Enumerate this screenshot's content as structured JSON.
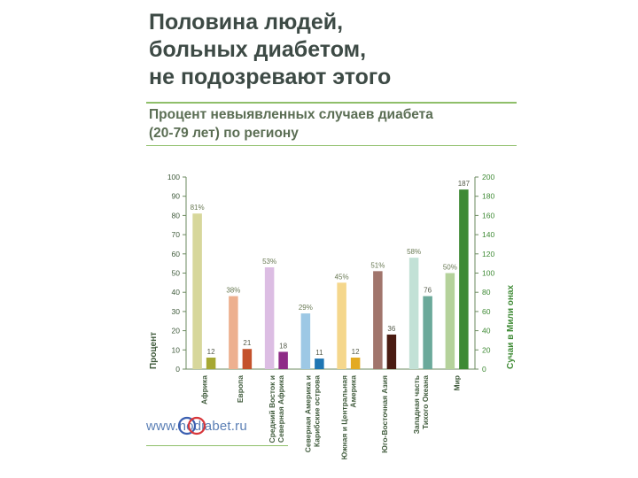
{
  "title": "Половина людей,\nбольных диабетом,\nне подозревают этого",
  "subtitle": "Процент невыявленных случаев диабета\n(20-79 лет) по региону",
  "website": "www.nodiabet.ru",
  "logo_text": "no",
  "colors": {
    "title": "#3d4a45",
    "rule": "#8fbf6a",
    "axis_text": "#3f5a3b",
    "right_axis_text": "#3e8a34"
  },
  "chart_data": {
    "type": "bar",
    "categories": [
      "Африка",
      "Европа",
      "Средний Восток и Северная Африка",
      "Северная Америка и Карибские острова",
      "Южная и Центральная Америка",
      "Юго-Восточная Азия",
      "Западная часть Тихого Океана",
      "Мир"
    ],
    "category_lines": [
      [
        "Африка"
      ],
      [
        "Европа"
      ],
      [
        "Средний Восток и",
        "Северная Африка"
      ],
      [
        "Северная Америка и",
        "Карибские острова"
      ],
      [
        "Южная и Центральная",
        "Америка"
      ],
      [
        "Юго-Восточная Азия"
      ],
      [
        "Западная часть",
        "Тихого Океана"
      ],
      [
        "Мир"
      ]
    ],
    "series": [
      {
        "axis": "left",
        "values": [
          81,
          38,
          53,
          29,
          45,
          51,
          58,
          50
        ],
        "labels": [
          "81%",
          "38%",
          "53%",
          "29%",
          "45%",
          "51%",
          "58%",
          "50%"
        ],
        "colors": [
          "#d7d79b",
          "#edb08f",
          "#dcbde3",
          "#9dc8e5",
          "#f5d78c",
          "#a1756c",
          "#c2e1d6",
          "#b5d29b"
        ]
      },
      {
        "axis": "right",
        "values": [
          12,
          21,
          18,
          11,
          12,
          36,
          76,
          187
        ],
        "labels": [
          "12",
          "21",
          "18",
          "11",
          "12",
          "36",
          "76",
          "187"
        ],
        "colors": [
          "#a6a833",
          "#c4522c",
          "#8e2c87",
          "#1f76b3",
          "#e3aa22",
          "#4a1c12",
          "#6ba99a",
          "#3e8a34"
        ]
      }
    ],
    "ylabel": "Процент",
    "y2label": "Сучаи в Мили онах",
    "ylim": [
      0,
      100
    ],
    "y2lim": [
      0,
      200
    ],
    "yticks": [
      0,
      10,
      20,
      30,
      40,
      50,
      60,
      70,
      80,
      90,
      100
    ],
    "y2ticks": [
      0,
      20,
      40,
      60,
      80,
      100,
      120,
      140,
      160,
      180,
      200
    ],
    "grid": false,
    "legend": "none"
  }
}
